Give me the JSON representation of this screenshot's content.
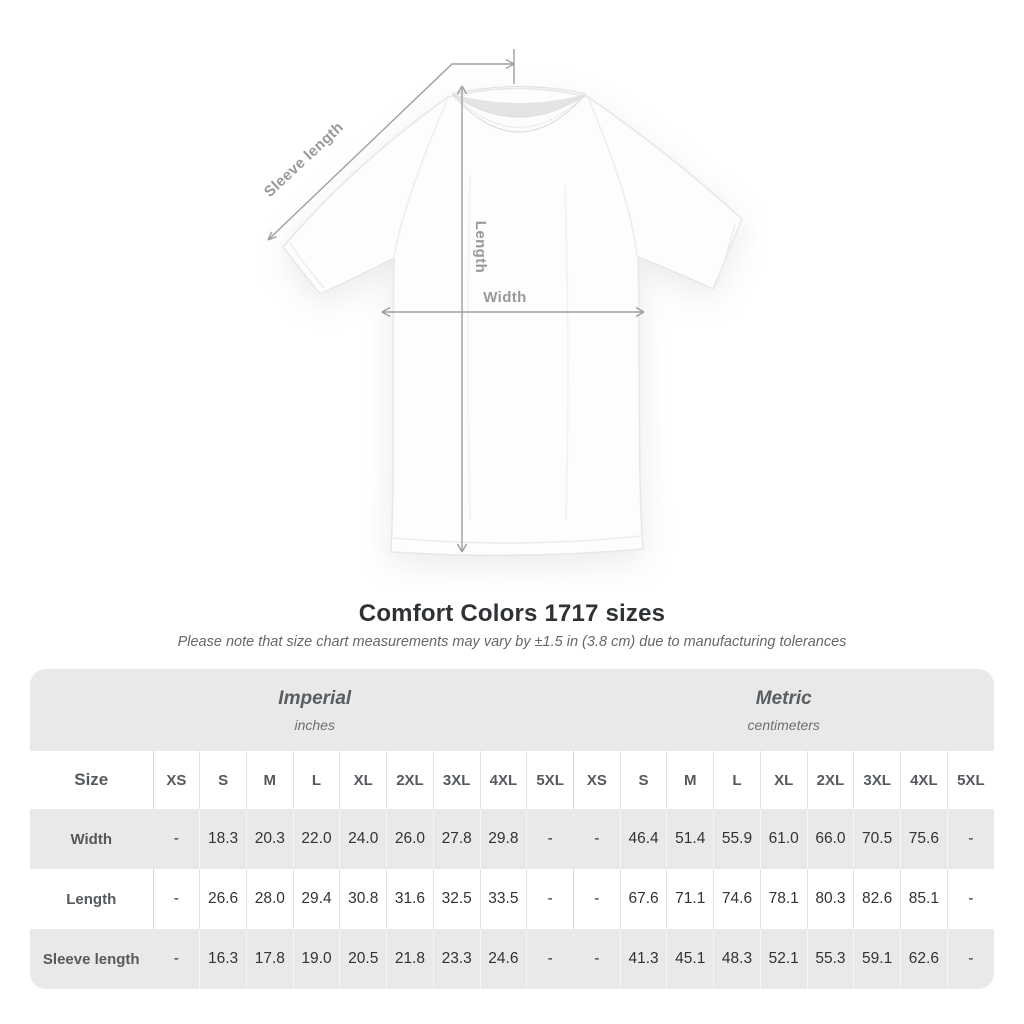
{
  "diagram": {
    "labels": {
      "sleeve_length": "Sleeve length",
      "length": "Length",
      "width": "Width"
    }
  },
  "title": "Comfort Colors 1717 sizes",
  "subtitle": "Please note that size chart measurements may vary by ±1.5 in (3.8 cm) due to manufacturing tolerances",
  "table": {
    "group_headers": [
      {
        "label": "Imperial",
        "sublabel": "inches",
        "span": 10
      },
      {
        "label": "Metric",
        "sublabel": "centimeters",
        "span": 9
      }
    ],
    "size_header": "Size",
    "columns": [
      "XS",
      "S",
      "M",
      "L",
      "XL",
      "2XL",
      "3XL",
      "4XL",
      "5XL",
      "XS",
      "S",
      "M",
      "L",
      "XL",
      "2XL",
      "3XL",
      "4XL",
      "5XL"
    ],
    "rows": [
      {
        "label": "Width",
        "values": [
          "-",
          "18.3",
          "20.3",
          "22.0",
          "24.0",
          "26.0",
          "27.8",
          "29.8",
          "-",
          "-",
          "46.4",
          "51.4",
          "55.9",
          "61.0",
          "66.0",
          "70.5",
          "75.6",
          "-"
        ]
      },
      {
        "label": "Length",
        "values": [
          "-",
          "26.6",
          "28.0",
          "29.4",
          "30.8",
          "31.6",
          "32.5",
          "33.5",
          "-",
          "-",
          "67.6",
          "71.1",
          "74.6",
          "78.1",
          "80.3",
          "82.6",
          "85.1",
          "-"
        ]
      },
      {
        "label": "Sleeve length",
        "values": [
          "-",
          "16.3",
          "17.8",
          "19.0",
          "20.5",
          "21.8",
          "23.3",
          "24.6",
          "-",
          "-",
          "41.3",
          "45.1",
          "48.3",
          "52.1",
          "55.3",
          "59.1",
          "62.6",
          "-"
        ]
      }
    ]
  },
  "colors": {
    "row_shade": "#e9e9e9",
    "text_dark": "#2f3336",
    "text_gray": "#55595d",
    "diagram_gray": "#9aa0a4"
  }
}
